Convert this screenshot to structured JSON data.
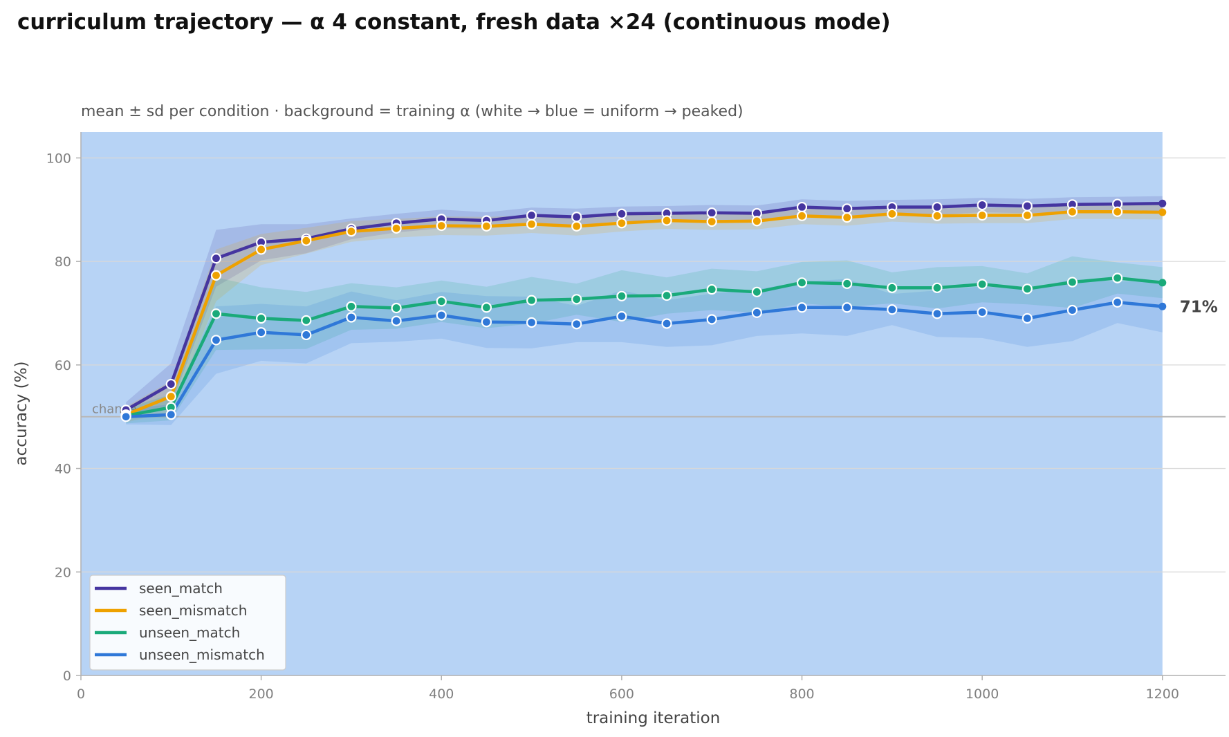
{
  "chart_data": {
    "type": "line",
    "title": "curriculum trajectory — α 4 constant, fresh data ×24 (continuous mode)",
    "subtitle": "mean ± sd per condition · background = training α (white → blue = uniform → peaked)",
    "xlabel": "training iteration",
    "ylabel": "accuracy (%)",
    "xlim": [
      0,
      1270
    ],
    "ylim": [
      0,
      105
    ],
    "xticks": [
      0,
      200,
      400,
      600,
      800,
      1000,
      1200
    ],
    "yticks": [
      0,
      20,
      40,
      60,
      80,
      100
    ],
    "grid": "horizontal",
    "legend_position": "bottom-left",
    "background_color": "#b7d3f5",
    "background_range": [
      0,
      1200
    ],
    "chance": {
      "label": "chance",
      "value": 50
    },
    "end_annotation": {
      "text": "71%",
      "value": 71.3
    },
    "x": [
      50,
      100,
      150,
      200,
      250,
      300,
      350,
      400,
      450,
      500,
      550,
      600,
      650,
      700,
      750,
      800,
      850,
      900,
      950,
      1000,
      1050,
      1100,
      1150,
      1200
    ],
    "series": [
      {
        "name": "seen_match",
        "color": "#4535a0",
        "values": [
          51.3,
          56.3,
          80.6,
          83.7,
          84.4,
          86.3,
          87.4,
          88.2,
          87.9,
          88.9,
          88.6,
          89.2,
          89.3,
          89.4,
          89.3,
          90.5,
          90.2,
          90.5,
          90.5,
          90.9,
          90.7,
          91.0,
          91.1,
          91.2
        ],
        "sd": [
          1.5,
          4.0,
          5.5,
          3.5,
          2.8,
          2.0,
          1.8,
          1.8,
          1.6,
          1.5,
          1.6,
          1.4,
          1.4,
          1.5,
          1.5,
          1.5,
          1.5,
          1.4,
          1.5,
          1.4,
          1.4,
          1.4,
          1.4,
          1.4
        ]
      },
      {
        "name": "seen_mismatch",
        "color": "#eea100",
        "values": [
          50.4,
          53.9,
          77.3,
          82.3,
          84.0,
          85.8,
          86.4,
          86.9,
          86.8,
          87.2,
          86.8,
          87.4,
          87.9,
          87.7,
          87.8,
          88.8,
          88.5,
          89.2,
          88.8,
          88.9,
          88.9,
          89.6,
          89.6,
          89.5
        ],
        "sd": [
          1.5,
          3.0,
          5.0,
          3.0,
          2.5,
          2.0,
          1.8,
          1.8,
          1.8,
          1.7,
          1.8,
          1.6,
          1.6,
          1.6,
          1.6,
          1.6,
          1.6,
          1.5,
          1.5,
          1.5,
          1.5,
          1.4,
          1.4,
          1.4
        ]
      },
      {
        "name": "unseen_match",
        "color": "#1aaa7a",
        "values": [
          50.2,
          51.8,
          69.9,
          69.0,
          68.6,
          71.3,
          71.0,
          72.3,
          71.1,
          72.5,
          72.7,
          73.3,
          73.4,
          74.6,
          74.1,
          75.9,
          75.7,
          74.9,
          74.9,
          75.6,
          74.7,
          76.0,
          76.8,
          75.9
        ],
        "sd": [
          1.5,
          2.5,
          7.0,
          6.0,
          5.5,
          4.5,
          4.0,
          4.0,
          4.0,
          4.5,
          3.0,
          5.0,
          3.5,
          4.0,
          4.0,
          4.0,
          4.5,
          3.0,
          4.0,
          3.5,
          3.0,
          5.0,
          3.0,
          3.0
        ]
      },
      {
        "name": "unseen_mismatch",
        "color": "#2f78d8",
        "values": [
          50.0,
          50.4,
          64.8,
          66.3,
          65.8,
          69.2,
          68.5,
          69.6,
          68.3,
          68.2,
          67.9,
          69.4,
          68.0,
          68.8,
          70.1,
          71.1,
          71.1,
          70.7,
          69.9,
          70.2,
          69.0,
          70.6,
          72.1,
          71.3
        ],
        "sd": [
          1.5,
          2.0,
          6.5,
          5.5,
          5.5,
          5.0,
          4.0,
          4.5,
          5.0,
          5.0,
          3.5,
          5.0,
          4.5,
          5.0,
          4.5,
          5.0,
          5.5,
          3.0,
          4.5,
          5.0,
          5.5,
          6.0,
          4.0,
          5.0
        ]
      }
    ]
  }
}
